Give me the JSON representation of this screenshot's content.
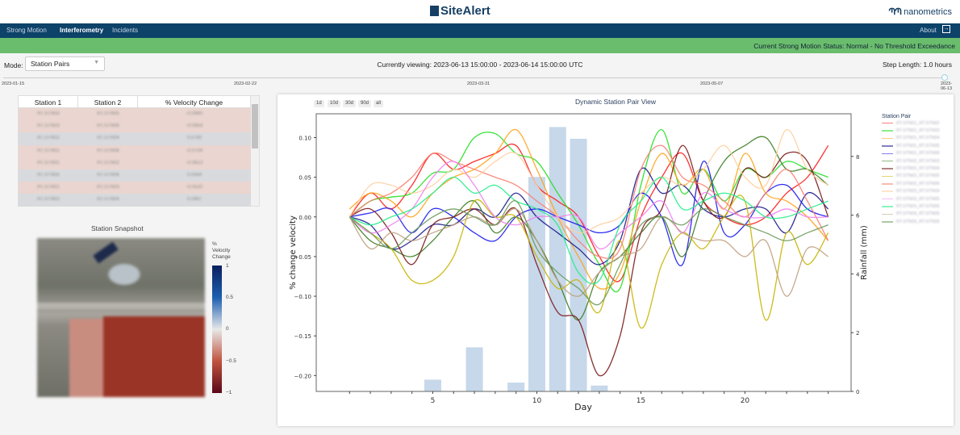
{
  "header": {
    "logo": "SiteAlert",
    "brand": "nanometrics"
  },
  "nav": {
    "items": [
      "Strong Motion",
      "Interferometry",
      "Incidents"
    ],
    "active": "Interferometry",
    "about": "About"
  },
  "status": {
    "text": "Current Strong Motion Status: Normal - No Threshold Exceedance",
    "color": "#6bbd6e"
  },
  "controls": {
    "mode_label": "Mode:",
    "mode_value": "Station Pairs",
    "current_viewing": "Currently viewing: 2023-06-13 15:00:00 - 2023-06-14 15:00:00 UTC",
    "step_length": "Step Length: 1.0 hours"
  },
  "timeline": {
    "labels": [
      "2023-01-15",
      "2023-02-22",
      "2023-03-31",
      "2023-05-07",
      "2023-06-13"
    ],
    "position": 1.0
  },
  "table": {
    "headers": [
      "Station 1",
      "Station 2",
      "% Velocity Change"
    ],
    "rows": [
      [
        "RT.STN03",
        "RT.STN05",
        "-0.0960"
      ],
      [
        "RT.STN03",
        "RT.STN06",
        "-0.0959"
      ],
      [
        "RT.STN02",
        "RT.STN04",
        "0.0790"
      ],
      [
        "RT.STN01",
        "RT.STN06",
        "-0.0704"
      ],
      [
        "RT.STN01",
        "RT.STN02",
        "-0.0613"
      ],
      [
        "RT.STN05",
        "RT.STN06",
        "0.0564"
      ],
      [
        "RT.STN01",
        "RT.STN03",
        "-0.0520"
      ],
      [
        "RT.STN02",
        "RT.STN04",
        "0.0487"
      ]
    ],
    "row_colors": [
      "#ead5d0",
      "#ead5d0",
      "#d8dadd",
      "#ead5d0",
      "#ead5d0",
      "#d8dadd",
      "#ead5d0",
      "#d8dadd"
    ]
  },
  "snapshot": {
    "title": "Station Snapshot",
    "colorbar_title": [
      "%",
      "Velocity",
      "Change"
    ],
    "colorbar_ticks": [
      "1",
      "0.5",
      "0",
      "−0.5",
      "−1"
    ]
  },
  "chart": {
    "range_buttons": [
      "1d",
      "10d",
      "30d",
      "90d",
      "all"
    ],
    "title": "Dynamic Station Pair View",
    "legend_title": "Station Pair"
  },
  "chart_data": {
    "type": "line",
    "xlabel": "Day",
    "ylabel": "% change velocity",
    "y2label": "Rainfall (mm)",
    "xlim": [
      -0.6,
      25.1
    ],
    "ylim": [
      -0.22,
      0.13
    ],
    "y2lim": [
      0,
      9.45
    ],
    "xticks": [
      5,
      10,
      15,
      20
    ],
    "yticks": [
      0.1,
      0.05,
      0.0,
      -0.05,
      -0.1,
      -0.15,
      -0.2
    ],
    "ytick_labels": [
      "0.10",
      "0.05",
      "0.00",
      "−0.05",
      "−0.10",
      "−0.15",
      "−0.20"
    ],
    "y2ticks": [
      0,
      2,
      4,
      6,
      8
    ],
    "grid": false,
    "legend": "right",
    "rainfall": {
      "type": "bar",
      "x": [
        5,
        7,
        9,
        10,
        11,
        12,
        13
      ],
      "values": [
        0.4,
        1.5,
        0.3,
        7.3,
        9.0,
        8.6,
        0.2
      ],
      "color": "#c6d8ea"
    },
    "x": [
      1,
      2,
      3,
      4,
      5,
      6,
      7,
      8,
      9,
      10,
      11,
      12,
      13,
      14,
      15,
      16,
      17,
      18,
      19,
      20,
      21,
      22,
      23,
      24
    ],
    "series": [
      {
        "name": "RT.STN01_RT.STN02",
        "color": "#ff1a1a",
        "values": [
          0,
          0.03,
          0.01,
          0.04,
          0.08,
          0.06,
          0.07,
          0.08,
          0.09,
          0.04,
          0.02,
          0.0,
          -0.05,
          -0.08,
          0.0,
          0.05,
          0.08,
          0.02,
          0.0,
          -0.01,
          0.0,
          0.03,
          0.05,
          0.09
        ]
      },
      {
        "name": "RT.STN01_RT.STN03",
        "color": "#22e022",
        "values": [
          0,
          0.02,
          0.025,
          0.03,
          0.055,
          0.06,
          0.1,
          0.105,
          0.08,
          0.07,
          0.03,
          -0.01,
          -0.06,
          -0.09,
          0.04,
          0.11,
          0.03,
          0.06,
          0.02,
          0.06,
          0.05,
          0.07,
          0.06,
          0.05
        ]
      },
      {
        "name": "RT.STN01_RT.STN04",
        "color": "#ffa31a",
        "values": [
          0.01,
          0.03,
          0.02,
          0.0,
          0.03,
          0.05,
          0.06,
          0.08,
          0.11,
          0.06,
          0.0,
          -0.05,
          -0.09,
          -0.07,
          0.02,
          0.08,
          0.04,
          0.06,
          0.01,
          0.08,
          0.03,
          0.02,
          0.0,
          -0.03
        ]
      },
      {
        "name": "RT.STN01_RT.STN05",
        "color": "#1a1a8c",
        "values": [
          0,
          -0.01,
          -0.04,
          -0.03,
          -0.01,
          -0.01,
          0.01,
          0.0,
          0.03,
          0.0,
          -0.02,
          -0.04,
          -0.06,
          -0.03,
          0.06,
          0.03,
          0.04,
          0.01,
          0.0,
          0.01,
          0.01,
          -0.02,
          0.03,
          0.01
        ]
      },
      {
        "name": "RT.STN01_RT.STN06",
        "color": "#1a1aee",
        "values": [
          0,
          0.005,
          0.01,
          -0.02,
          0.01,
          0.0,
          -0.02,
          -0.03,
          0.0,
          0.01,
          0.0,
          -0.01,
          -0.02,
          -0.01,
          0.03,
          0.0,
          -0.06,
          0.07,
          -0.02,
          -0.01,
          0.03,
          0.04,
          0.01,
          0.0
        ]
      },
      {
        "name": "RT.STN02_RT.STN03",
        "color": "#3a7d22",
        "values": [
          0,
          -0.03,
          -0.04,
          -0.05,
          -0.03,
          0.0,
          0.02,
          -0.02,
          0.0,
          -0.03,
          -0.08,
          -0.13,
          -0.07,
          -0.05,
          -0.02,
          0.0,
          -0.05,
          0.02,
          0.07,
          0.09,
          0.1,
          0.06,
          0.06,
          0.04
        ]
      },
      {
        "name": "RT.STN02_RT.STN04",
        "color": "#7a1a1a",
        "values": [
          0,
          0.01,
          -0.02,
          -0.06,
          -0.01,
          0.0,
          0.01,
          -0.01,
          0.01,
          -0.06,
          -0.12,
          -0.13,
          -0.2,
          -0.15,
          -0.02,
          0.01,
          0.09,
          0.02,
          0.0,
          0.06,
          0.05,
          0.08,
          0.07,
          0.0
        ]
      },
      {
        "name": "RT.STN02_RT.STN05",
        "color": "#c8b400",
        "values": [
          0,
          -0.02,
          -0.04,
          -0.08,
          -0.08,
          -0.05,
          0.02,
          0.0,
          0.0,
          -0.05,
          -0.09,
          -0.08,
          -0.12,
          -0.03,
          -0.14,
          -0.06,
          -0.02,
          -0.04,
          0.0,
          0.02,
          -0.13,
          -0.02,
          -0.06,
          -0.02
        ]
      },
      {
        "name": "RT.STN02_RT.STN06",
        "color": "#fa8072",
        "values": [
          0,
          0.02,
          0.03,
          0.05,
          0.08,
          0.07,
          0.06,
          0.05,
          0.04,
          0.02,
          0.0,
          -0.03,
          -0.05,
          -0.04,
          0.06,
          0.09,
          0.05,
          0.04,
          0.02,
          0.0,
          0.03,
          0.06,
          0.02,
          -0.03
        ]
      },
      {
        "name": "RT.STN03_RT.STN04",
        "color": "#ffcfa0",
        "values": [
          0,
          0.04,
          0.04,
          0.03,
          0.04,
          0.06,
          0.05,
          0.07,
          0.08,
          0.04,
          0.0,
          -0.02,
          -0.01,
          0.0,
          0.03,
          0.05,
          0.04,
          0.06,
          0.09,
          0.05,
          0.04,
          0.11,
          0.06,
          0.04
        ]
      },
      {
        "name": "RT.STN03_RT.STN05",
        "color": "#ee82ee",
        "values": [
          0,
          -0.02,
          -0.01,
          0.01,
          0.05,
          0.07,
          0.04,
          0.0,
          -0.01,
          0.0,
          0.0,
          0.0,
          -0.04,
          -0.02,
          0.0,
          0.02,
          -0.02,
          0.03,
          0.01,
          0.0,
          0.0,
          0.01,
          0.0,
          0.0
        ]
      },
      {
        "name": "RT.STN03_RT.STN06",
        "color": "#22ee88",
        "values": [
          0,
          -0.01,
          0.0,
          0.01,
          0.03,
          0.05,
          0.03,
          0.04,
          0.02,
          0.01,
          -0.01,
          -0.07,
          -0.08,
          -0.01,
          0.02,
          0.05,
          0.01,
          0.02,
          0.03,
          0.02,
          0.0,
          0.0,
          0.01,
          0.02
        ]
      },
      {
        "name": "RT.STN04_RT.STN05",
        "color": "#c0a080",
        "values": [
          0,
          -0.04,
          -0.02,
          -0.03,
          -0.02,
          -0.01,
          0.0,
          -0.01,
          0.01,
          -0.03,
          -0.08,
          -0.1,
          -0.07,
          -0.05,
          -0.04,
          0.0,
          -0.02,
          -0.03,
          -0.03,
          -0.05,
          -0.03,
          -0.1,
          -0.04,
          -0.05
        ]
      },
      {
        "name": "RT.STN05_RT.STN06",
        "color": "#6a9a5a",
        "values": [
          0,
          -0.02,
          -0.04,
          -0.02,
          0.0,
          0.01,
          0.0,
          -0.01,
          0.02,
          -0.04,
          -0.07,
          -0.09,
          -0.11,
          -0.06,
          -0.01,
          0.0,
          -0.01,
          0.01,
          0.0,
          -0.01,
          -0.02,
          -0.03,
          -0.02,
          -0.01
        ]
      }
    ]
  }
}
